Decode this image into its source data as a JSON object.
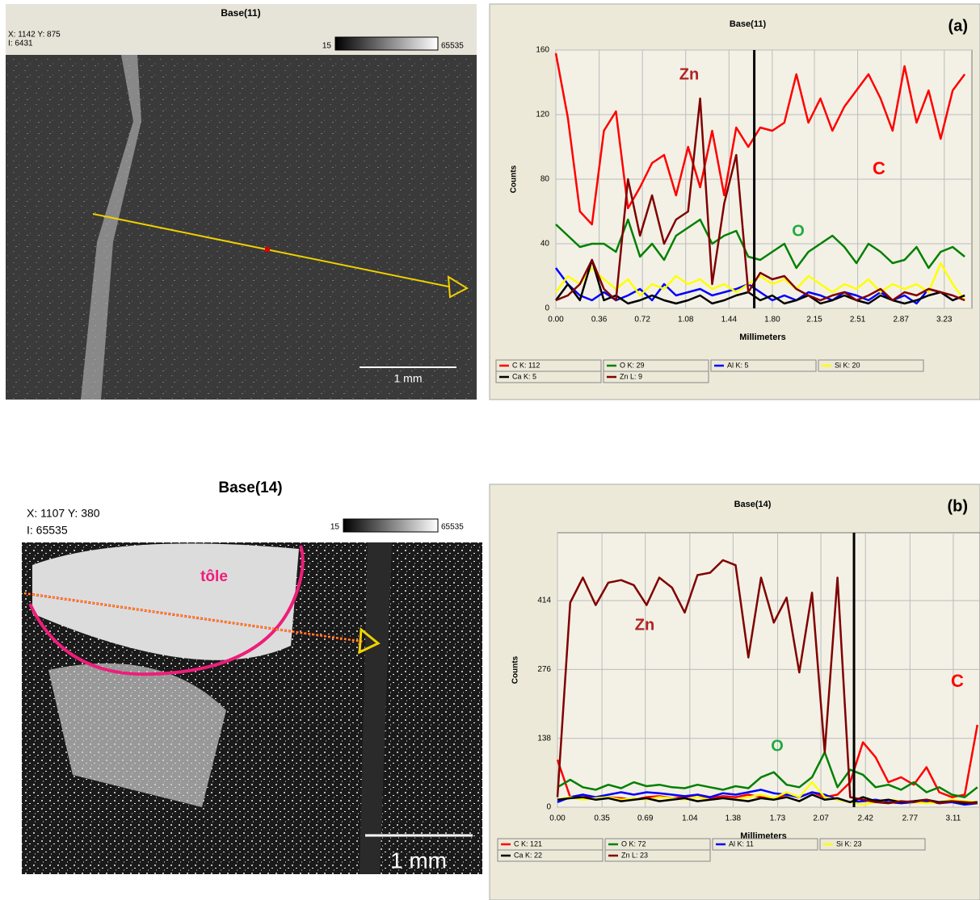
{
  "images": [
    {
      "title": "Base(11)",
      "coords": "X: 1142 Y: 875",
      "intensity": "I: 6431",
      "scale_min": "15",
      "scale_max": "65535",
      "scale_bar": "1 mm"
    },
    {
      "title": "Base(14)",
      "coords": "X: 1107 Y: 380",
      "intensity": "I: 65535",
      "scale_min": "15",
      "scale_max": "65535",
      "scale_bar": "1 mm",
      "annotation": "tôle"
    }
  ],
  "chart_data": [
    {
      "type": "line",
      "title": "Base(11)",
      "panel_label": "(a)",
      "x_label": "Millimeters",
      "y_label": "Counts",
      "x": [
        0,
        0.1,
        0.2,
        0.3,
        0.4,
        0.5,
        0.6,
        0.7,
        0.8,
        0.9,
        1.0,
        1.1,
        1.2,
        1.3,
        1.4,
        1.5,
        1.6,
        1.7,
        1.8,
        1.9,
        2.0,
        2.1,
        2.2,
        2.3,
        2.4,
        2.5,
        2.6,
        2.7,
        2.8,
        2.9,
        3.0,
        3.1,
        3.2,
        3.3,
        3.4
      ],
      "xlim": [
        0,
        3.46
      ],
      "ylim": [
        0,
        160
      ],
      "xticks": [
        {
          "value": 0,
          "label": "0.00"
        },
        0.36,
        0.72,
        1.08,
        1.44,
        {
          "value": 1.8,
          "label": "1.80"
        },
        2.15,
        2.51,
        2.87,
        3.23
      ],
      "yticks": [
        0,
        40,
        80,
        120,
        160
      ],
      "grid": true,
      "cursor_x": 1.65,
      "series": [
        {
          "name": "C K: 112",
          "color": "#ff0000",
          "values": [
            158,
            118,
            60,
            52,
            110,
            122,
            62,
            75,
            90,
            95,
            70,
            100,
            75,
            110,
            70,
            112,
            100,
            112,
            110,
            115,
            145,
            115,
            130,
            110,
            125,
            135,
            145,
            130,
            110,
            150,
            115,
            135,
            105,
            135,
            145
          ]
        },
        {
          "name": "O K: 29",
          "color": "#008000",
          "values": [
            52,
            45,
            38,
            40,
            40,
            35,
            55,
            32,
            40,
            30,
            45,
            50,
            55,
            40,
            45,
            48,
            32,
            30,
            35,
            40,
            25,
            35,
            40,
            45,
            38,
            28,
            40,
            35,
            28,
            30,
            38,
            25,
            35,
            38,
            32
          ]
        },
        {
          "name": "Al K: 5",
          "color": "#0000ff",
          "values": [
            25,
            15,
            8,
            5,
            10,
            5,
            8,
            12,
            5,
            15,
            8,
            10,
            12,
            8,
            10,
            12,
            15,
            10,
            5,
            8,
            5,
            10,
            8,
            5,
            10,
            8,
            5,
            10,
            5,
            8,
            3,
            12,
            10,
            5,
            8
          ]
        },
        {
          "name": "Si K: 20",
          "color": "#ffff00",
          "values": [
            10,
            20,
            15,
            25,
            18,
            12,
            18,
            8,
            15,
            12,
            20,
            15,
            18,
            12,
            15,
            10,
            15,
            20,
            15,
            18,
            12,
            20,
            15,
            10,
            15,
            12,
            18,
            10,
            15,
            12,
            15,
            10,
            28,
            15,
            5
          ]
        },
        {
          "name": "Ca K: 5",
          "color": "#000000",
          "values": [
            5,
            15,
            5,
            30,
            5,
            8,
            3,
            5,
            8,
            5,
            3,
            5,
            8,
            3,
            5,
            8,
            10,
            5,
            8,
            3,
            5,
            8,
            3,
            5,
            8,
            5,
            3,
            8,
            5,
            3,
            5,
            8,
            10,
            5,
            8
          ]
        },
        {
          "name": "Zn L: 9",
          "color": "#800000",
          "values": [
            5,
            8,
            15,
            30,
            12,
            5,
            80,
            45,
            70,
            40,
            55,
            60,
            130,
            15,
            65,
            95,
            10,
            22,
            18,
            20,
            12,
            8,
            5,
            8,
            10,
            5,
            8,
            12,
            5,
            10,
            8,
            12,
            10,
            8,
            5
          ]
        }
      ],
      "annotations": [
        {
          "text": "Zn",
          "color": "#b22222"
        },
        {
          "text": "C",
          "color": "#ff0000"
        },
        {
          "text": "O",
          "color": "#22aa44"
        }
      ]
    },
    {
      "type": "line",
      "title": "Base(14)",
      "panel_label": "(b)",
      "x_label": "Millimeters",
      "y_label": "Counts",
      "x": [
        0,
        0.1,
        0.2,
        0.3,
        0.4,
        0.5,
        0.6,
        0.7,
        0.8,
        0.9,
        1.0,
        1.1,
        1.2,
        1.3,
        1.4,
        1.5,
        1.6,
        1.7,
        1.8,
        1.9,
        2.0,
        2.1,
        2.2,
        2.3,
        2.4,
        2.5,
        2.6,
        2.7,
        2.8,
        2.9,
        3.0,
        3.1,
        3.2,
        3.3
      ],
      "xlim": [
        0,
        3.32
      ],
      "ylim": [
        0,
        550
      ],
      "xticks": [
        {
          "value": 0,
          "label": "0.00"
        },
        0.35,
        0.69,
        1.04,
        1.38,
        1.73,
        2.07,
        2.42,
        2.77,
        3.11
      ],
      "yticks": [
        0,
        138,
        276,
        414
      ],
      "grid": true,
      "cursor_x": 2.33,
      "series": [
        {
          "name": "C K: 121",
          "color": "#ff0000",
          "values": [
            95,
            20,
            25,
            15,
            20,
            18,
            15,
            20,
            22,
            18,
            20,
            25,
            18,
            22,
            20,
            25,
            20,
            18,
            25,
            20,
            30,
            20,
            25,
            50,
            130,
            100,
            50,
            60,
            45,
            80,
            30,
            20,
            25,
            165
          ]
        },
        {
          "name": "O K: 72",
          "color": "#008000",
          "values": [
            40,
            55,
            40,
            35,
            45,
            38,
            50,
            42,
            45,
            40,
            38,
            45,
            40,
            35,
            42,
            38,
            60,
            70,
            45,
            40,
            60,
            110,
            40,
            75,
            65,
            40,
            45,
            35,
            50,
            30,
            40,
            25,
            20,
            40
          ]
        },
        {
          "name": "Al K: 11",
          "color": "#0000ff",
          "values": [
            10,
            20,
            25,
            20,
            25,
            30,
            25,
            30,
            28,
            25,
            22,
            25,
            20,
            28,
            25,
            30,
            35,
            28,
            25,
            20,
            30,
            25,
            15,
            10,
            12,
            15,
            10,
            8,
            10,
            12,
            8,
            10,
            5,
            8
          ]
        },
        {
          "name": "Si K: 23",
          "color": "#ffff00",
          "values": [
            15,
            20,
            15,
            18,
            20,
            15,
            18,
            15,
            20,
            18,
            15,
            20,
            15,
            18,
            15,
            20,
            25,
            18,
            30,
            20,
            50,
            20,
            15,
            10,
            5,
            10,
            15,
            12,
            10,
            8,
            10,
            15,
            12,
            10
          ]
        },
        {
          "name": "Ca K: 22",
          "color": "#000000",
          "values": [
            15,
            18,
            20,
            15,
            18,
            12,
            15,
            18,
            12,
            15,
            18,
            12,
            15,
            18,
            15,
            12,
            18,
            15,
            20,
            12,
            25,
            15,
            18,
            10,
            20,
            12,
            15,
            10,
            12,
            15,
            10,
            12,
            8,
            10
          ]
        },
        {
          "name": "Zn L: 23",
          "color": "#800000",
          "values": [
            20,
            410,
            460,
            405,
            450,
            455,
            445,
            405,
            460,
            440,
            390,
            465,
            470,
            495,
            485,
            300,
            460,
            370,
            420,
            270,
            430,
            110,
            460,
            20,
            15,
            10,
            8,
            12,
            10,
            15,
            8,
            12,
            10,
            8
          ]
        }
      ],
      "annotations": [
        {
          "text": "Zn",
          "color": "#b22222"
        },
        {
          "text": "C",
          "color": "#ff0000"
        },
        {
          "text": "O",
          "color": "#22aa44"
        }
      ]
    }
  ]
}
